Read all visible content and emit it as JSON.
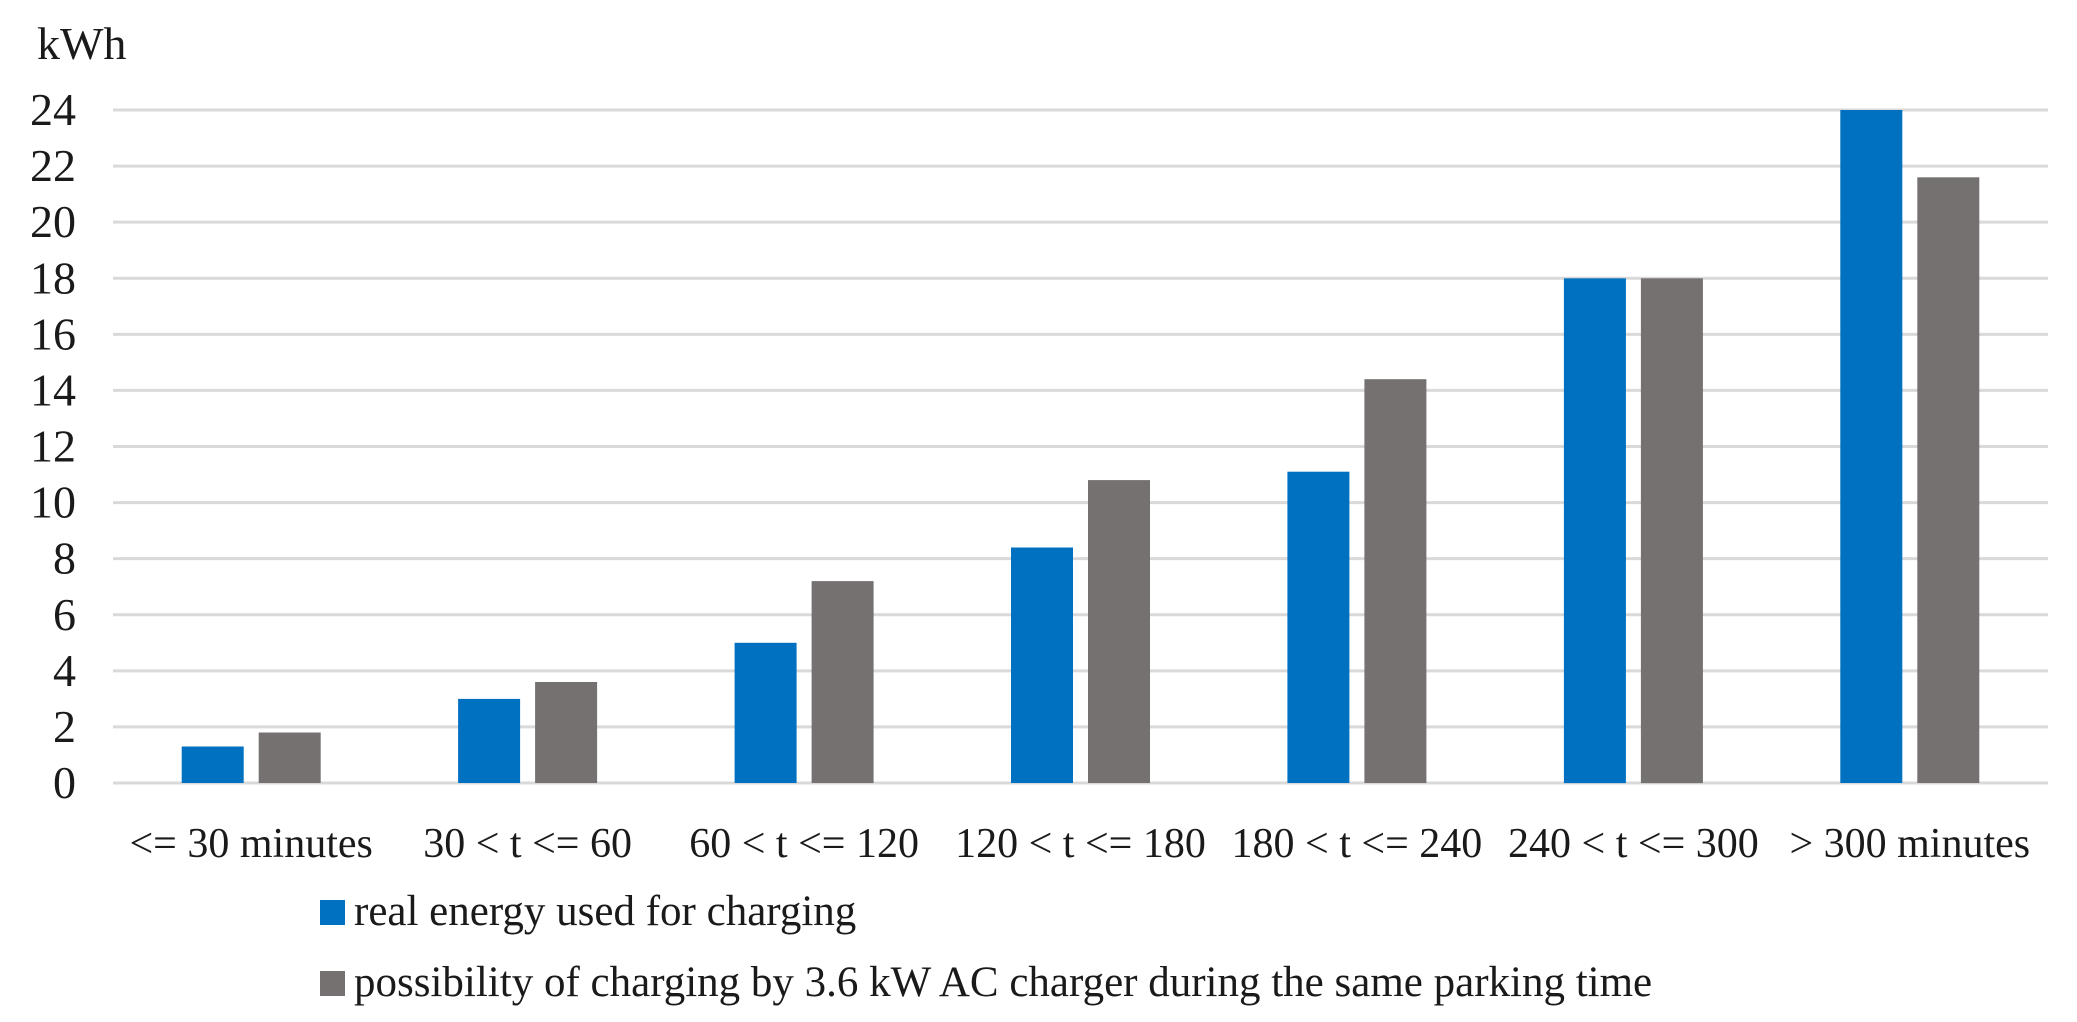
{
  "chart_data": {
    "type": "bar",
    "title": "",
    "ylabel": "kWh",
    "xlabel": "",
    "categories": [
      "<= 30 minutes",
      "30 < t <= 60",
      "60 < t <= 120",
      "120 < t <= 180",
      "180 < t <= 240",
      "240 < t <= 300",
      "> 300 minutes"
    ],
    "series": [
      {
        "name": "real energy used for charging",
        "color": "#0070C0",
        "values": [
          1.3,
          3.0,
          5.0,
          8.4,
          11.1,
          18.0,
          24.0
        ]
      },
      {
        "name": "possibility of charging by 3.6 kW AC charger during the same parking time",
        "color": "#767171",
        "values": [
          1.8,
          3.6,
          7.2,
          10.8,
          14.4,
          18.0,
          21.6
        ]
      }
    ],
    "ylim": [
      0,
      24
    ],
    "ytick_step": 2,
    "grid": true,
    "gridline_color": "#D9D9D9",
    "text_color": "#1a1a1a",
    "legend_position": "bottom-left"
  }
}
